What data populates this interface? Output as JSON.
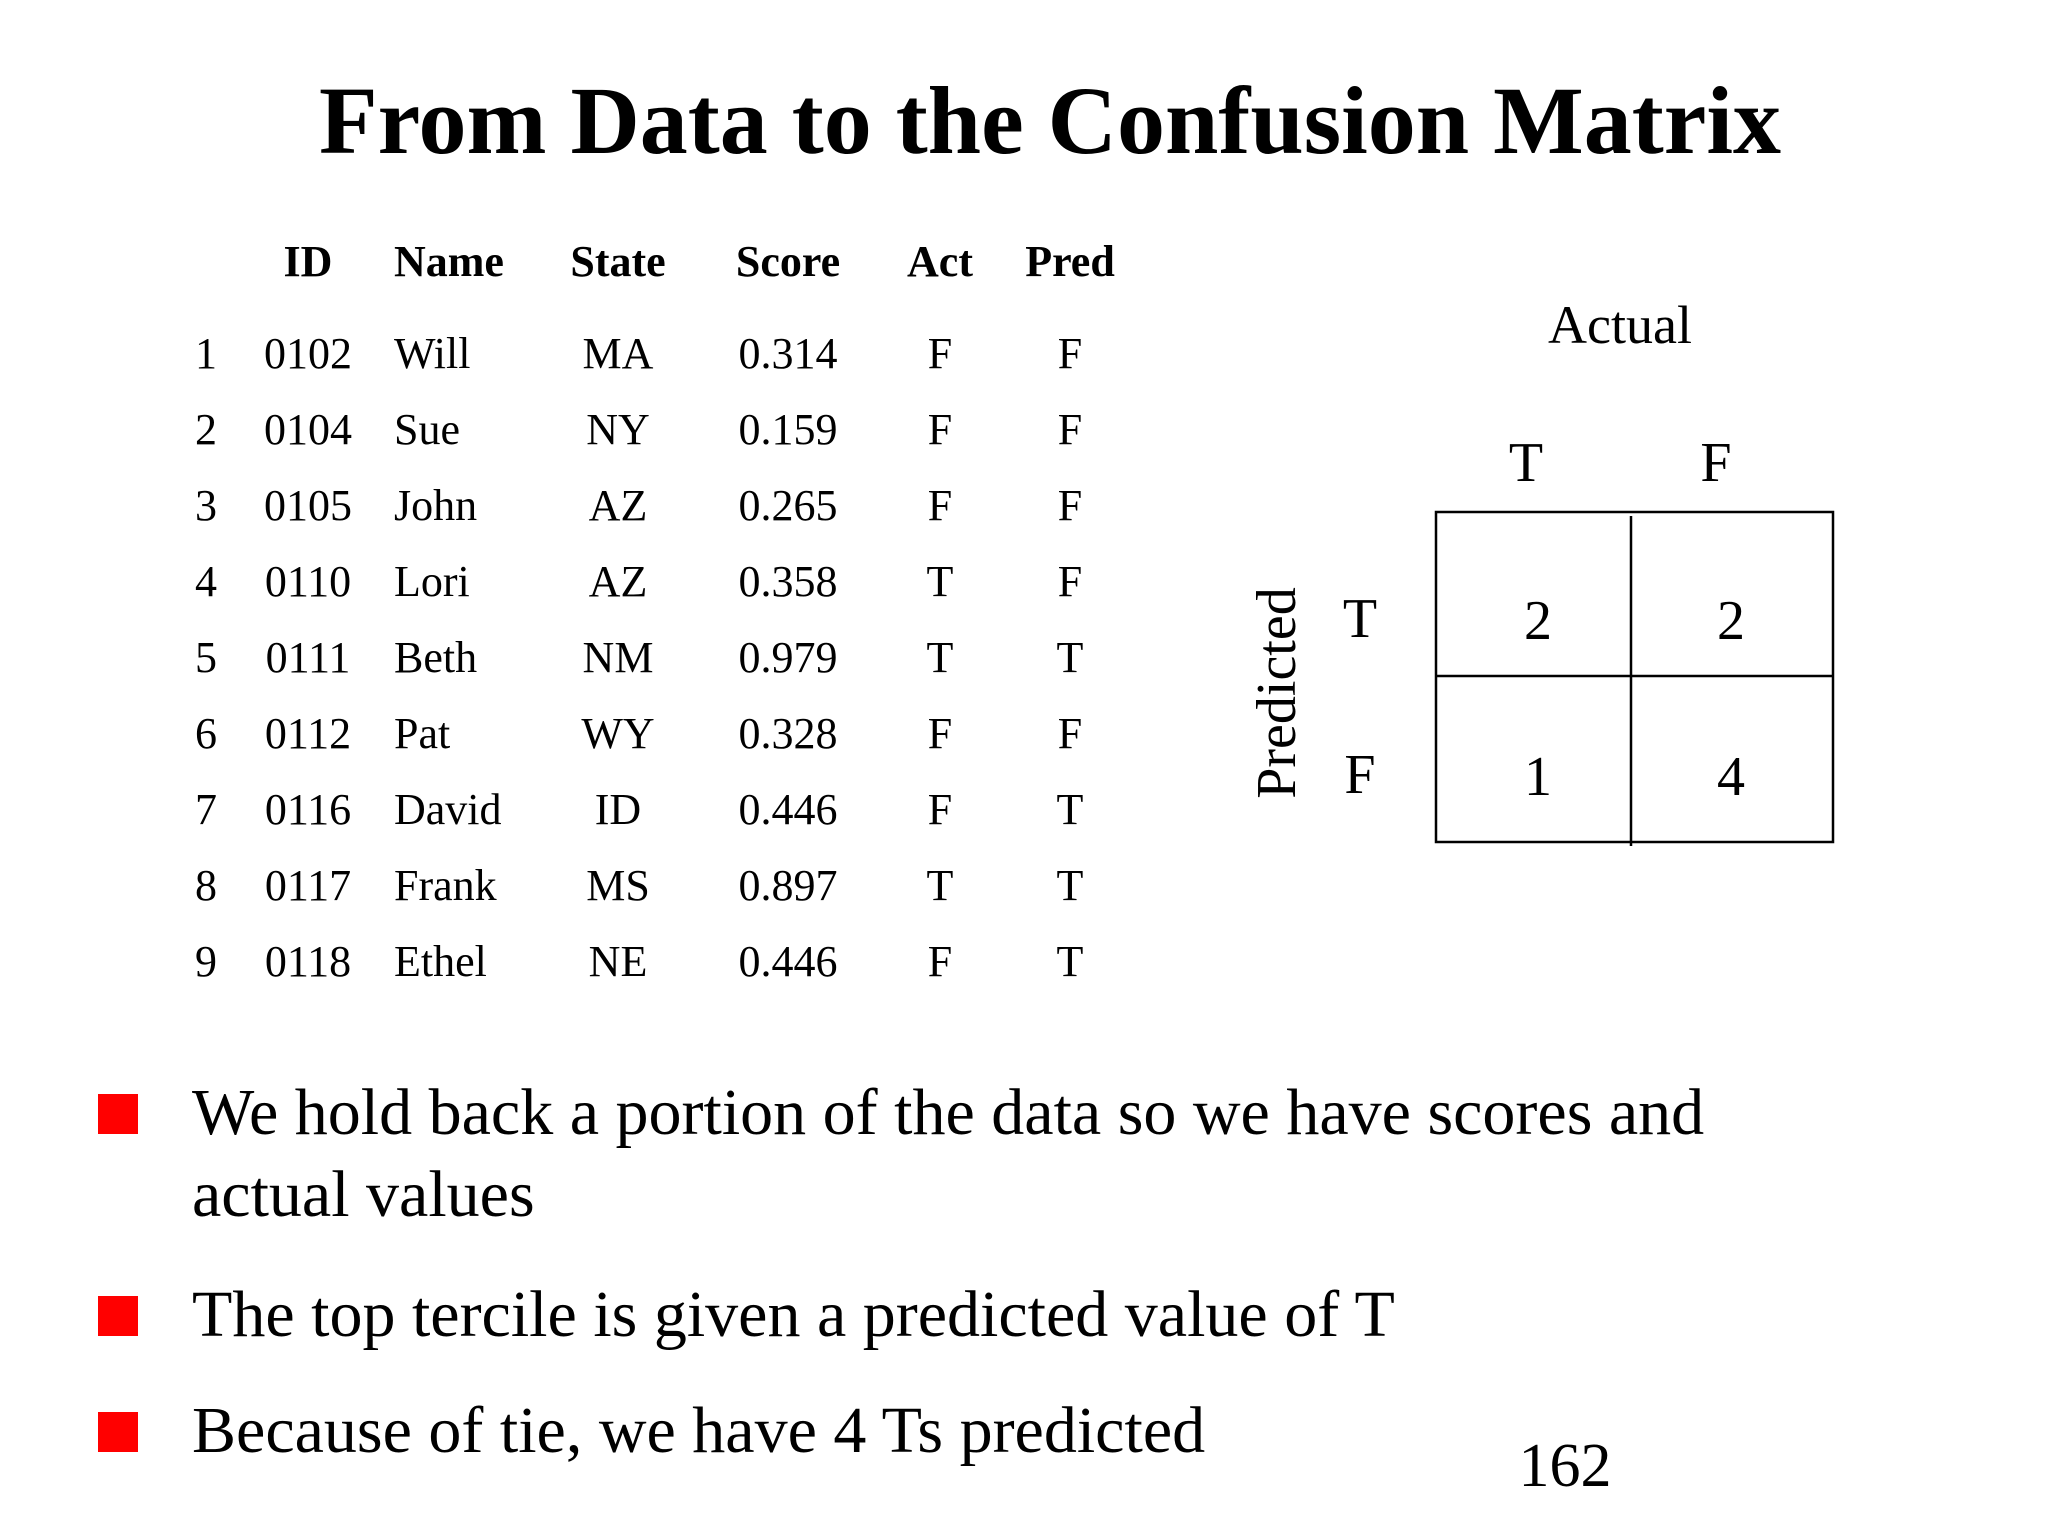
{
  "title": "From Data to the Confusion Matrix",
  "table": {
    "headers": [
      "ID",
      "Name",
      "State",
      "Score",
      "Act",
      "Pred"
    ],
    "rows": [
      {
        "idx": "1",
        "id": "0102",
        "name": "Will",
        "state": "MA",
        "score": "0.314",
        "act": "F",
        "pred": "F"
      },
      {
        "idx": "2",
        "id": "0104",
        "name": "Sue",
        "state": "NY",
        "score": "0.159",
        "act": "F",
        "pred": "F"
      },
      {
        "idx": "3",
        "id": "0105",
        "name": "John",
        "state": "AZ",
        "score": "0.265",
        "act": "F",
        "pred": "F"
      },
      {
        "idx": "4",
        "id": "0110",
        "name": "Lori",
        "state": "AZ",
        "score": "0.358",
        "act": "T",
        "pred": "F"
      },
      {
        "idx": "5",
        "id": "0111",
        "name": "Beth",
        "state": "NM",
        "score": "0.979",
        "act": "T",
        "pred": "T"
      },
      {
        "idx": "6",
        "id": "0112",
        "name": "Pat",
        "state": "WY",
        "score": "0.328",
        "act": "F",
        "pred": "F"
      },
      {
        "idx": "7",
        "id": "0116",
        "name": "David",
        "state": "ID",
        "score": "0.446",
        "act": "F",
        "pred": "T"
      },
      {
        "idx": "8",
        "id": "0117",
        "name": "Frank",
        "state": "MS",
        "score": "0.897",
        "act": "T",
        "pred": "T"
      },
      {
        "idx": "9",
        "id": "0118",
        "name": "Ethel",
        "state": "NE",
        "score": "0.446",
        "act": "F",
        "pred": "T"
      }
    ]
  },
  "matrix": {
    "actual_label": "Actual",
    "predicted_label": "Predicted",
    "col_labels": [
      "T",
      "F"
    ],
    "row_labels": [
      "T",
      "F"
    ],
    "cells": [
      [
        "2",
        "2"
      ],
      [
        "1",
        "4"
      ]
    ]
  },
  "bullets": [
    "We hold back a portion of the data so we have scores and actual values",
    "The top tercile is given a predicted value of T",
    "Because of tie, we have 4 Ts predicted"
  ],
  "bullet_color": "#ff0000",
  "page_number": "162"
}
